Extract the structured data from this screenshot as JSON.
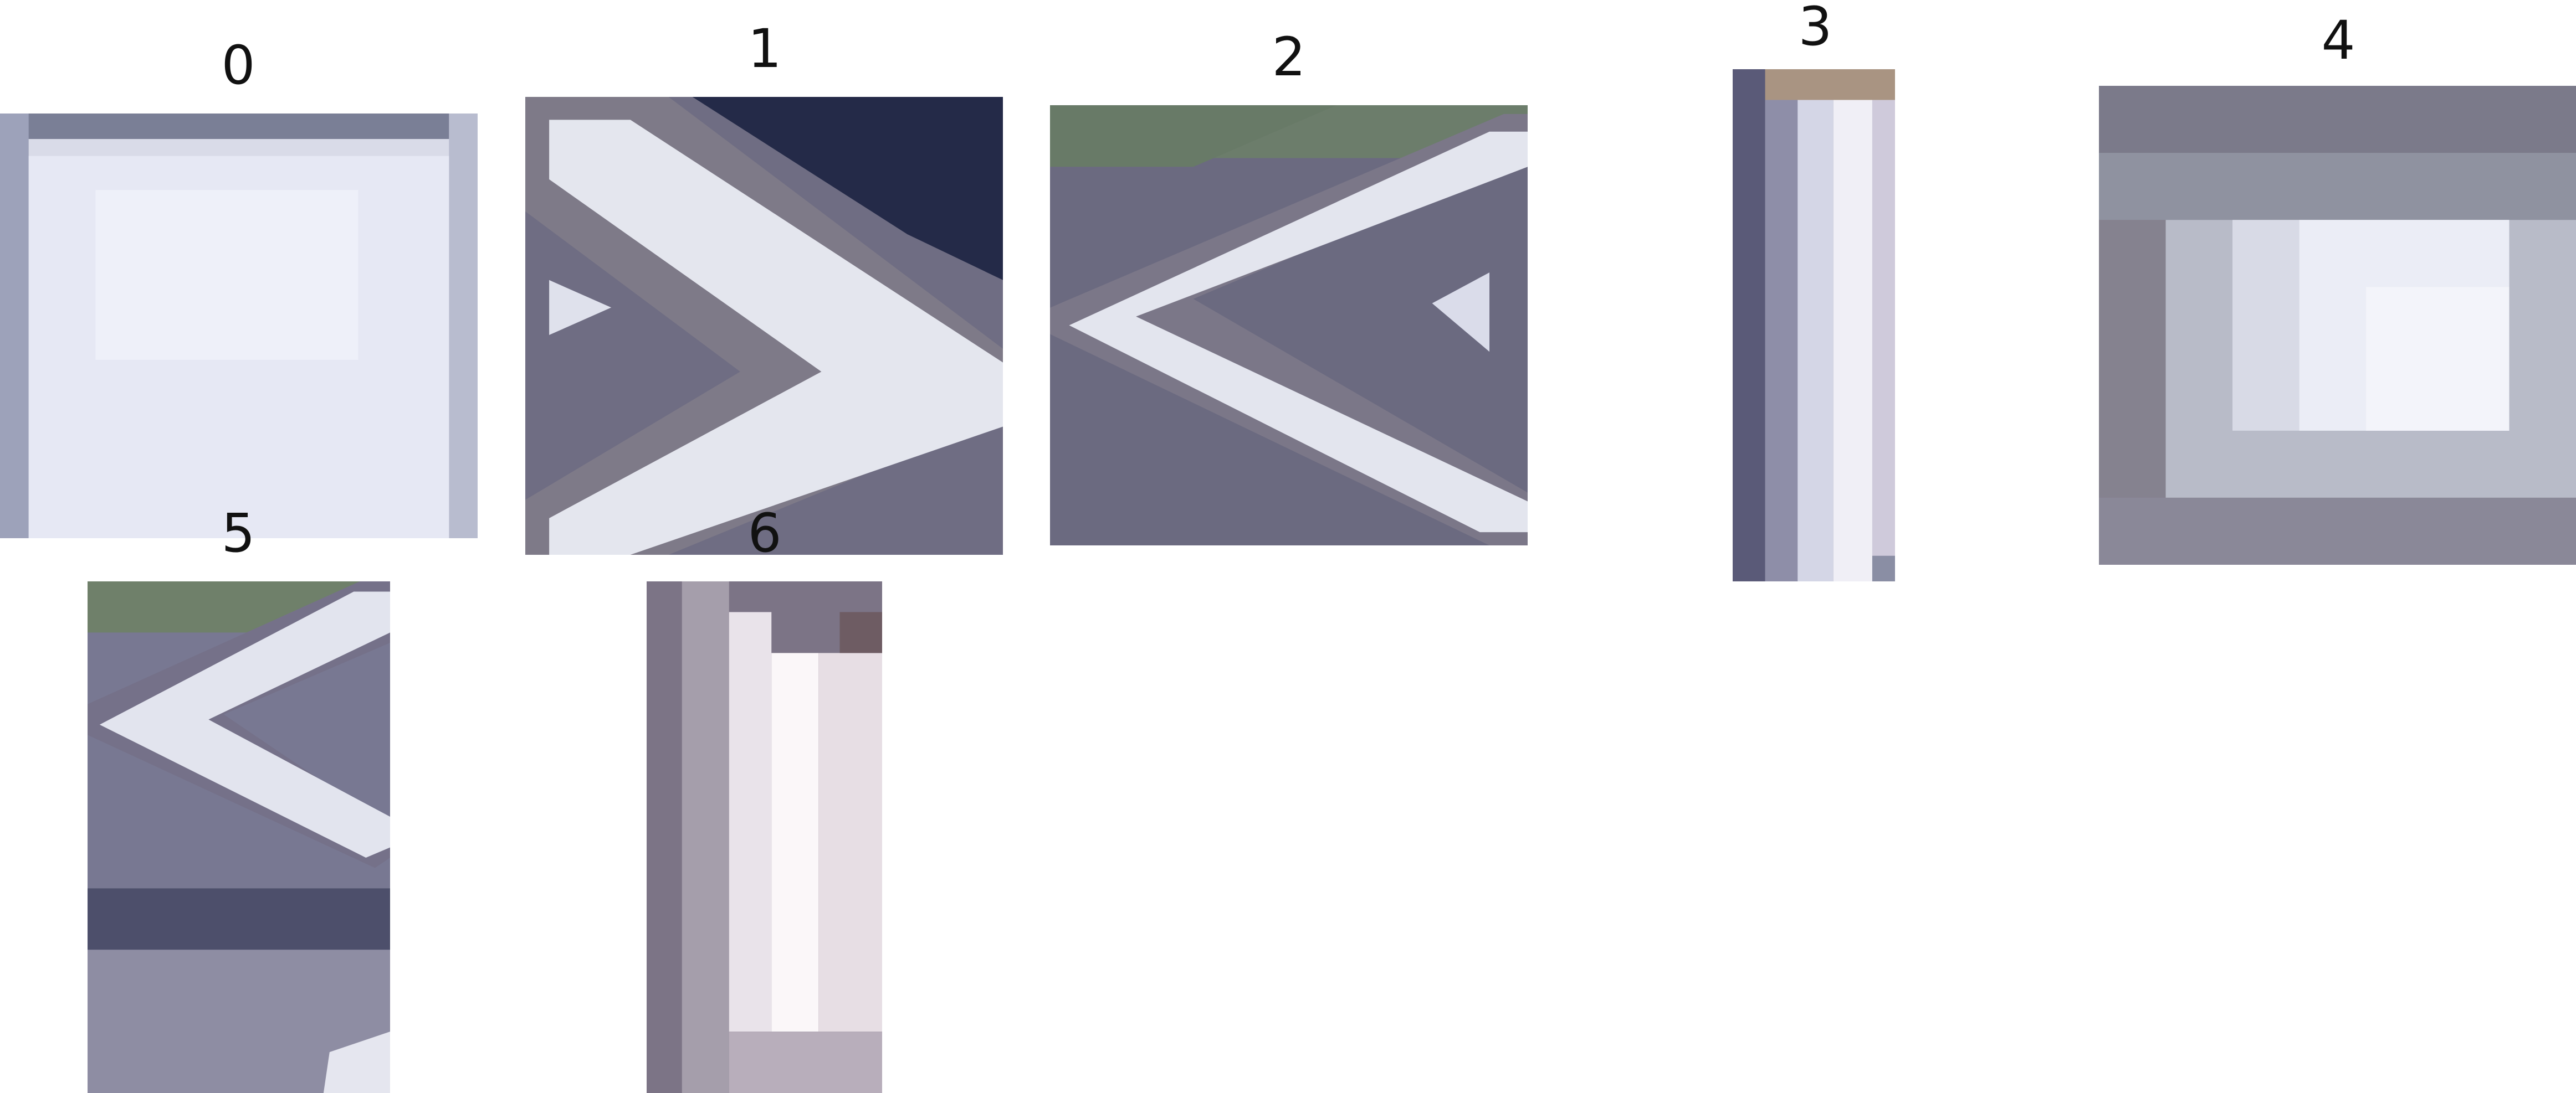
{
  "panels": [
    {
      "label": "0",
      "description_icon": "white-square-patch-icon"
    },
    {
      "label": "1",
      "description_icon": "right-chevron-arrow-icon"
    },
    {
      "label": "2",
      "description_icon": "left-chevron-arrow-icon"
    },
    {
      "label": "3",
      "description_icon": "narrow-white-stripe-icon"
    },
    {
      "label": "4",
      "description_icon": "blurred-light-blob-icon"
    },
    {
      "label": "5",
      "description_icon": "left-chevron-partial-icon"
    },
    {
      "label": "6",
      "description_icon": "vertical-white-bar-icon"
    }
  ]
}
